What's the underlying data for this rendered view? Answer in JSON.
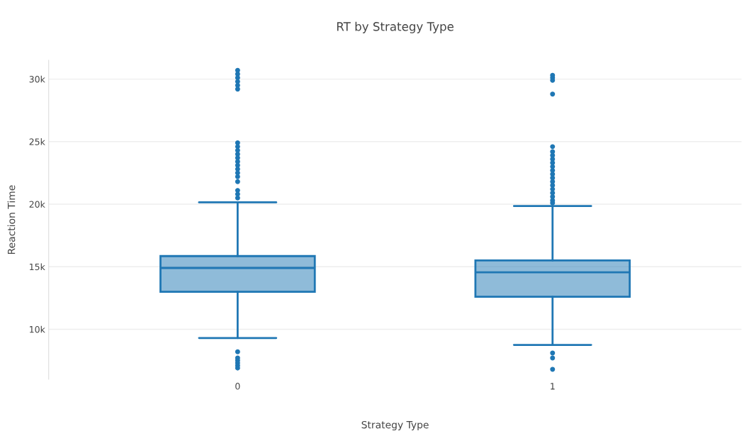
{
  "chart_data": {
    "type": "box",
    "title": "RT by Strategy Type",
    "xlabel": "Strategy Type",
    "ylabel": "Reaction Time",
    "categories": [
      "0",
      "1"
    ],
    "boxes": [
      {
        "low": 9300,
        "q1": 13000,
        "median": 14900,
        "q3": 15850,
        "high": 20150,
        "outliers": [
          30700,
          30400,
          30100,
          29800,
          29500,
          29200,
          24900,
          24600,
          24300,
          24000,
          23700,
          23400,
          23100,
          22800,
          22500,
          22200,
          21800,
          21100,
          20800,
          20500,
          8200,
          7700,
          7500,
          7300,
          7100,
          6900
        ]
      },
      {
        "low": 8750,
        "q1": 12600,
        "median": 14550,
        "q3": 15500,
        "high": 19850,
        "outliers": [
          30300,
          30100,
          29900,
          28800,
          24600,
          24200,
          23900,
          23600,
          23300,
          23000,
          22700,
          22400,
          22100,
          21800,
          21500,
          21200,
          20900,
          20600,
          20300,
          20100,
          8100,
          7700,
          6800
        ]
      }
    ],
    "color": "#1f77b4",
    "ylim": [
      6000,
      31500
    ],
    "yticks": [
      {
        "value": 10000,
        "label": "10k"
      },
      {
        "value": 15000,
        "label": "15k"
      },
      {
        "value": 20000,
        "label": "20k"
      },
      {
        "value": 25000,
        "label": "25k"
      },
      {
        "value": 30000,
        "label": "30k"
      }
    ],
    "grid": "y"
  }
}
